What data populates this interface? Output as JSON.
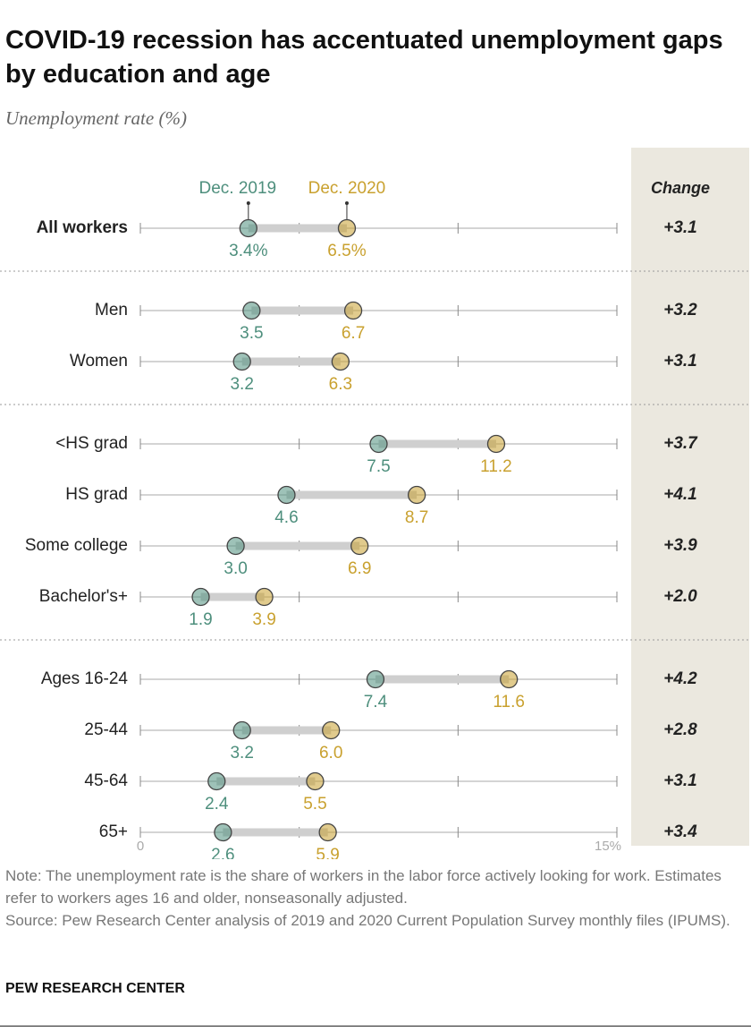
{
  "chart_data": {
    "type": "dumbbell",
    "title": "COVID-19 recession has accentuated unemployment gaps by education and age",
    "subtitle": "Unemployment rate (%)",
    "categories": [
      "All workers",
      "Men",
      "Women",
      "<HS grad",
      "HS grad",
      "Some college",
      "Bachelor's+",
      "Ages 16-24",
      "25-44",
      "45-64",
      "65+"
    ],
    "group_breaks": [
      1,
      3,
      7
    ],
    "series": [
      {
        "name": "Dec. 2019",
        "color": "#4e8f7d",
        "values": [
          3.4,
          3.5,
          3.2,
          7.5,
          4.6,
          3.0,
          1.9,
          7.4,
          3.2,
          2.4,
          2.6
        ],
        "value_labels": [
          "3.4%",
          "3.5",
          "3.2",
          "7.5",
          "4.6",
          "3.0",
          "1.9",
          "7.4",
          "3.2",
          "2.4",
          "2.6"
        ]
      },
      {
        "name": "Dec. 2020",
        "color": "#c9a12f",
        "values": [
          6.5,
          6.7,
          6.3,
          11.2,
          8.7,
          6.9,
          3.9,
          11.6,
          6.0,
          5.5,
          5.9
        ],
        "value_labels": [
          "6.5%",
          "6.7",
          "6.3",
          "11.2",
          "8.7",
          "6.9",
          "3.9",
          "11.6",
          "6.0",
          "5.5",
          "5.9"
        ]
      }
    ],
    "change": {
      "header": "Change",
      "values": [
        3.1,
        3.2,
        3.1,
        3.7,
        4.1,
        3.9,
        2.0,
        4.2,
        2.8,
        3.1,
        3.4
      ],
      "value_labels": [
        "+3.1",
        "+3.2",
        "+3.1",
        "+3.7",
        "+4.1",
        "+3.9",
        "+2.0",
        "+4.2",
        "+2.8",
        "+3.1",
        "+3.4"
      ]
    },
    "xlim": [
      0,
      15
    ],
    "xticks": [
      0,
      {
        "value": 15,
        "label": "15%"
      }
    ],
    "minor_xticks": [
      5,
      10
    ],
    "note": "Note: The unemployment rate is the share of workers in the labor force actively looking for work. Estimates refer to workers ages 16 and older, nonseasonally adjusted.",
    "source": "Source: Pew Research Center analysis of 2019 and 2020 Current Population Survey monthly files (IPUMS).",
    "footer": "PEW RESEARCH CENTER"
  }
}
